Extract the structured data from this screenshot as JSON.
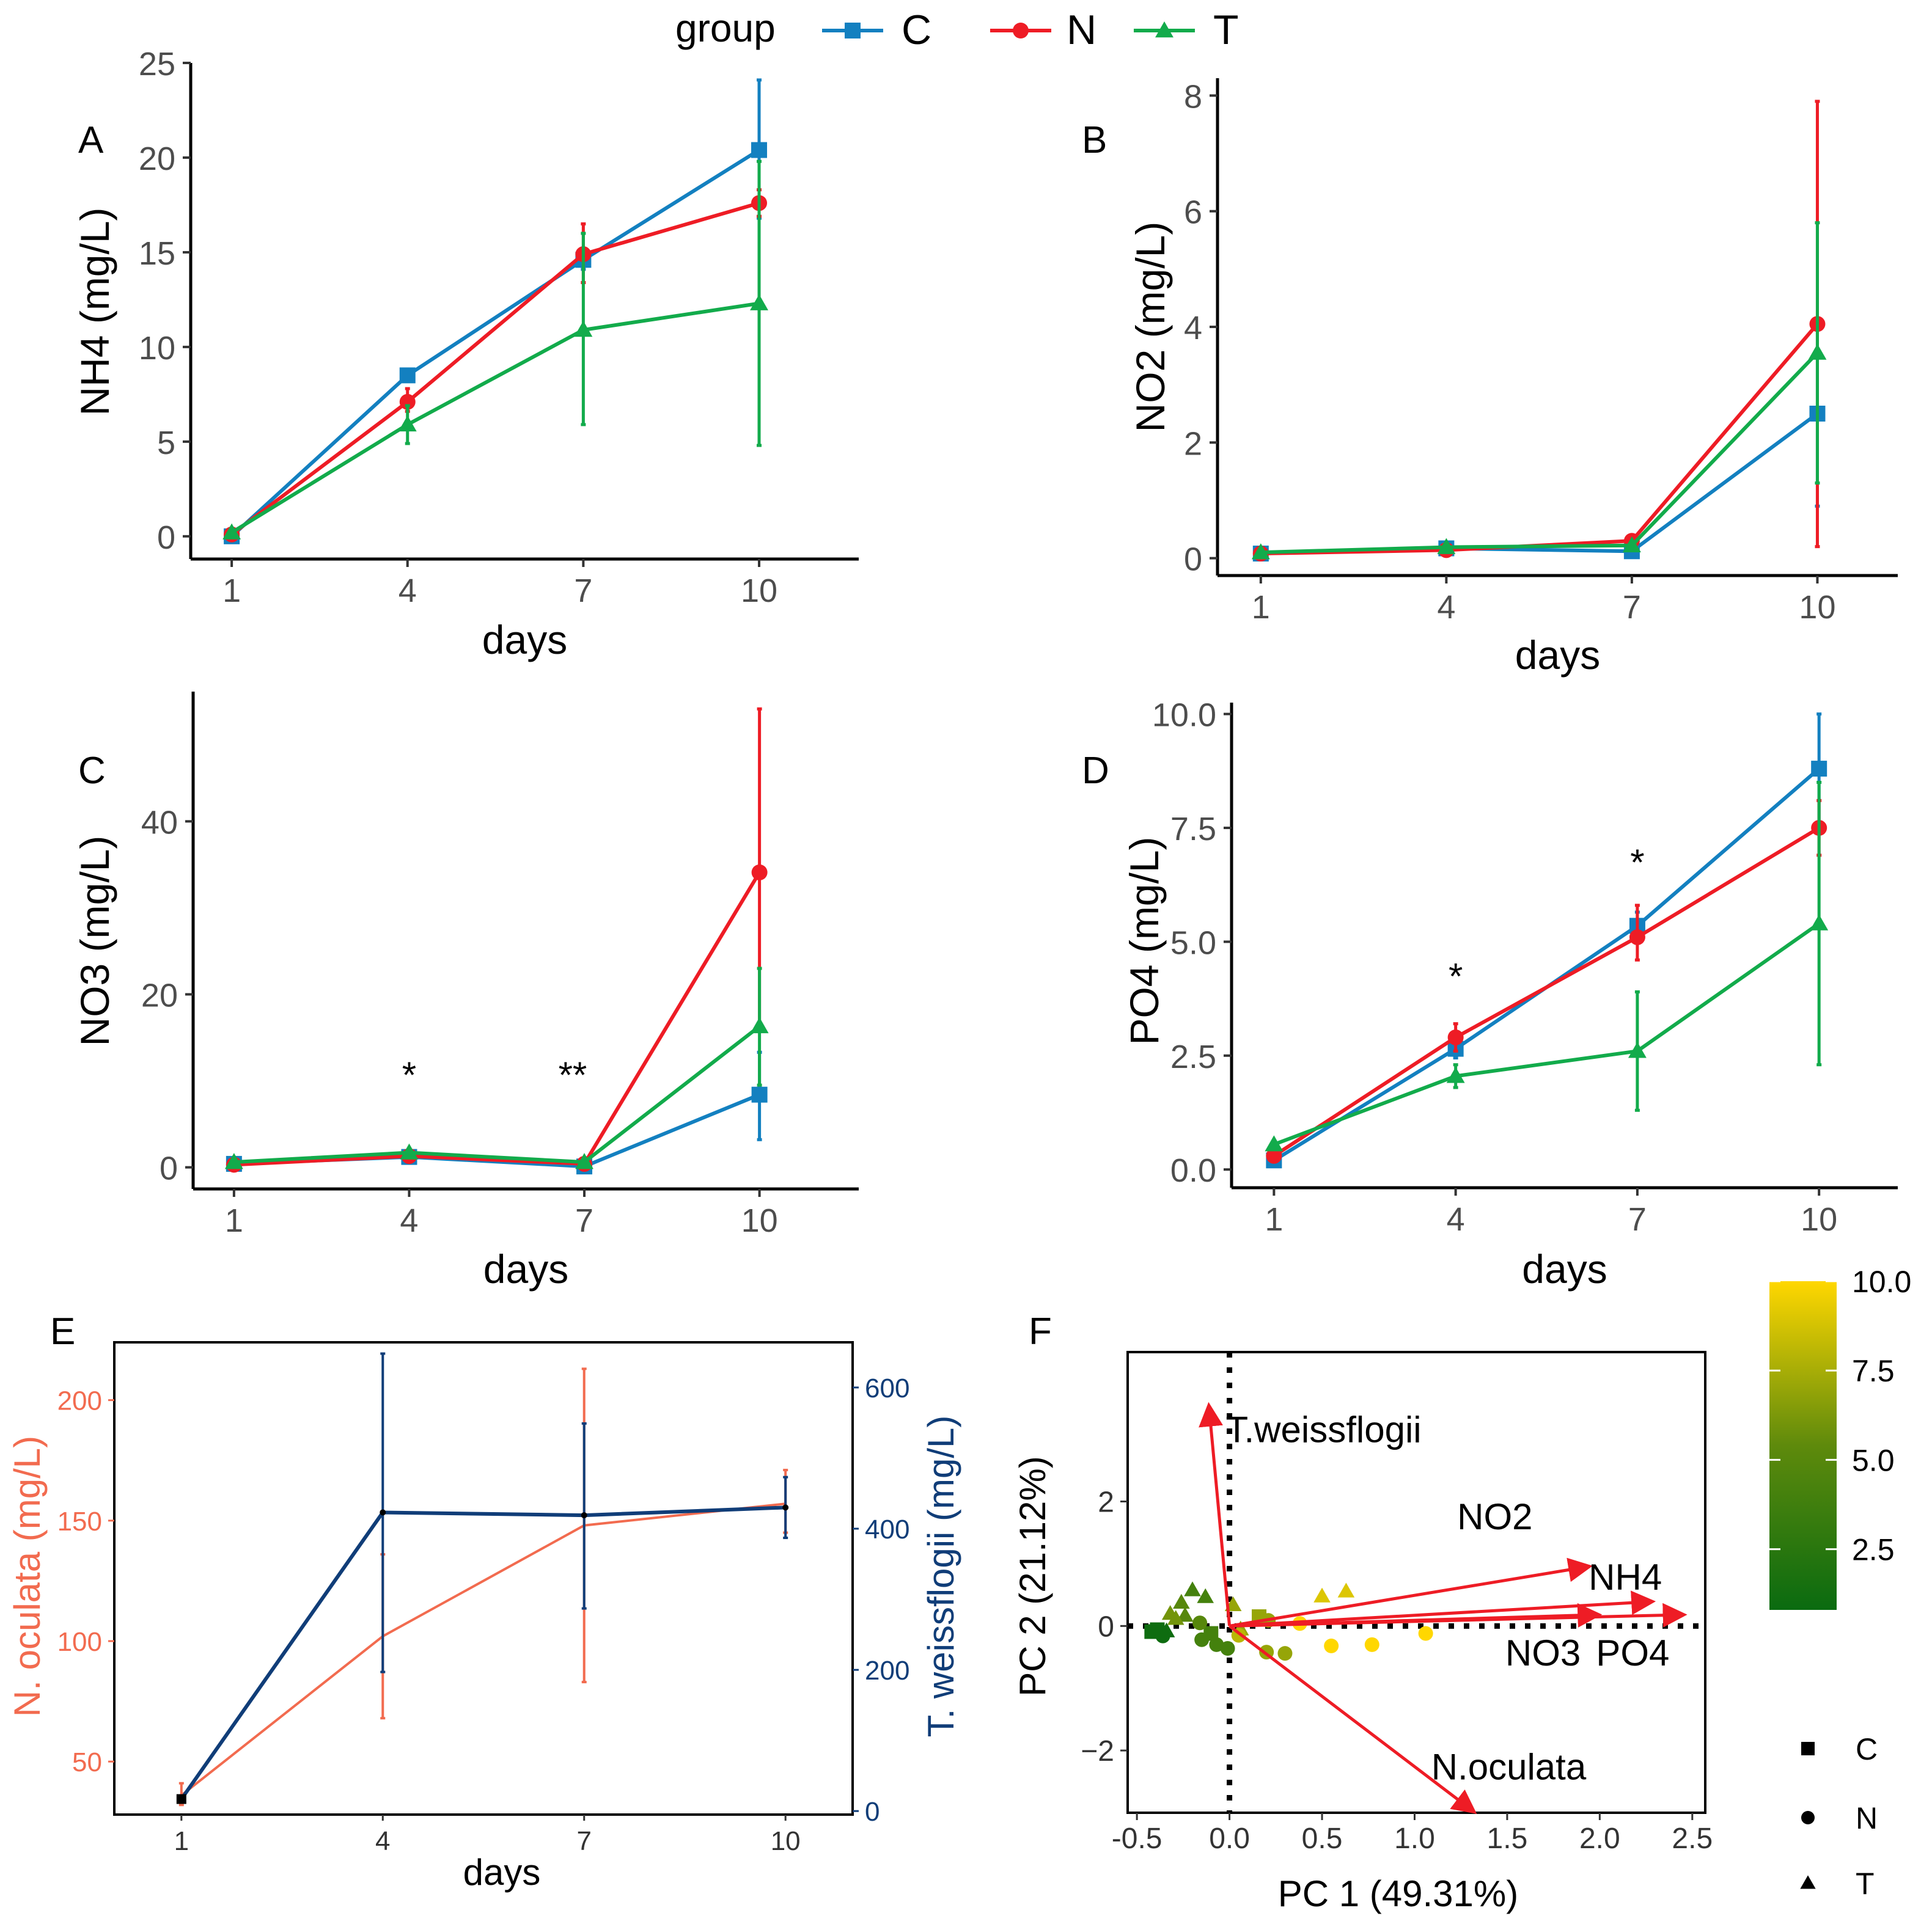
{
  "colors": {
    "C": "#1380C0",
    "N": "#EE1C25",
    "T": "#12AB4B",
    "noc": "#F26B4F",
    "tw": "#103D78",
    "axis": "#000000",
    "tick_text": "#4D4D4D",
    "arrow": "#EE1C25",
    "scale_low": "#0A6B10",
    "scale_mid": "#5E8A0C",
    "scale_high": "#FFD700"
  },
  "legend": {
    "title": "group",
    "items": [
      {
        "label": "C",
        "shape": "square",
        "color_key": "C"
      },
      {
        "label": "N",
        "shape": "circle",
        "color_key": "N"
      },
      {
        "label": "T",
        "shape": "triangle",
        "color_key": "T"
      }
    ]
  },
  "chart_data": [
    {
      "id": "A",
      "panel_label": "A",
      "type": "line",
      "xlabel": "days",
      "ylabel": "NH4 (mg/L)",
      "xlim": [
        0.3,
        11.7
      ],
      "ylim": [
        -1.2,
        25
      ],
      "xticks": [
        1,
        4,
        7,
        10
      ],
      "yticks": [
        0,
        5,
        10,
        15,
        20,
        25
      ],
      "x": [
        1,
        4,
        7,
        10
      ],
      "series": [
        {
          "name": "C",
          "values": [
            0,
            8.5,
            14.6,
            20.4
          ],
          "err_lo": [
            0,
            8.2,
            14.1,
            16.8
          ],
          "err_hi": [
            0,
            8.8,
            15.1,
            24.1
          ]
        },
        {
          "name": "N",
          "values": [
            0.1,
            7.1,
            14.9,
            17.6
          ],
          "err_lo": [
            0.1,
            6.6,
            13.4,
            16.9
          ],
          "err_hi": [
            0.1,
            7.8,
            16.5,
            18.3
          ]
        },
        {
          "name": "T",
          "values": [
            0.2,
            5.9,
            10.9,
            12.3
          ],
          "err_lo": [
            0.2,
            4.9,
            5.9,
            4.8
          ],
          "err_hi": [
            0.2,
            6.9,
            16.0,
            19.8
          ]
        }
      ],
      "annotations": []
    },
    {
      "id": "B",
      "panel_label": "B",
      "type": "line",
      "xlabel": "days",
      "ylabel": "NO2 (mg/L)",
      "xlim": [
        0.3,
        11.3
      ],
      "ylim": [
        -0.3,
        8.3
      ],
      "xticks": [
        1,
        4,
        7,
        10
      ],
      "yticks": [
        0,
        2,
        4,
        6,
        8
      ],
      "x": [
        1,
        4,
        7,
        10
      ],
      "series": [
        {
          "name": "C",
          "values": [
            0.08,
            0.17,
            0.12,
            2.5
          ],
          "err_lo": [
            0.07,
            0.15,
            0.1,
            0.9
          ],
          "err_hi": [
            0.09,
            0.19,
            0.14,
            4.1
          ]
        },
        {
          "name": "N",
          "values": [
            0.08,
            0.14,
            0.3,
            4.05
          ],
          "err_lo": [
            0.07,
            0.12,
            0.26,
            0.2
          ],
          "err_hi": [
            0.09,
            0.16,
            0.34,
            7.9
          ]
        },
        {
          "name": "T",
          "values": [
            0.1,
            0.19,
            0.22,
            3.55
          ],
          "err_lo": [
            0.09,
            0.17,
            0.2,
            1.3
          ],
          "err_hi": [
            0.11,
            0.21,
            0.24,
            5.8
          ]
        }
      ],
      "annotations": []
    },
    {
      "id": "C",
      "panel_label": "C",
      "type": "line",
      "xlabel": "days",
      "ylabel": "NO3 (mg/L)",
      "xlim": [
        0.3,
        11.7
      ],
      "ylim": [
        -2.5,
        55
      ],
      "xticks": [
        1,
        4,
        7,
        10
      ],
      "yticks": [
        0,
        20,
        40
      ],
      "x": [
        1,
        4,
        7,
        10
      ],
      "series": [
        {
          "name": "C",
          "values": [
            0.4,
            1.2,
            0.1,
            8.4
          ],
          "err_lo": [
            0.3,
            1.0,
            0.0,
            3.2
          ],
          "err_hi": [
            0.5,
            1.4,
            0.2,
            13.3
          ]
        },
        {
          "name": "N",
          "values": [
            0.3,
            1.3,
            0.4,
            34.1
          ],
          "err_lo": [
            0.2,
            1.1,
            0.3,
            16.0
          ],
          "err_hi": [
            0.4,
            1.5,
            0.5,
            53.0
          ]
        },
        {
          "name": "T",
          "values": [
            0.6,
            1.7,
            0.6,
            16.3
          ],
          "err_lo": [
            0.5,
            1.5,
            0.5,
            9.5
          ],
          "err_hi": [
            0.7,
            1.9,
            0.7,
            23.0
          ]
        }
      ],
      "annotations": [
        {
          "x": 4,
          "y": 11,
          "text": "*"
        },
        {
          "x": 6.8,
          "y": 11,
          "text": "**"
        }
      ]
    },
    {
      "id": "D",
      "panel_label": "D",
      "type": "line",
      "xlabel": "days",
      "ylabel": "PO4 (mg/L)",
      "xlim": [
        0.3,
        11.3
      ],
      "ylim": [
        -0.4,
        10.25
      ],
      "xticks": [
        1,
        4,
        7,
        10
      ],
      "yticks": [
        0.0,
        2.5,
        5.0,
        7.5,
        10.0
      ],
      "ytick_labels": [
        "0.0",
        "2.5",
        "5.0",
        "7.5",
        "10.0"
      ],
      "x": [
        1,
        4,
        7,
        10
      ],
      "series": [
        {
          "name": "C",
          "values": [
            0.2,
            2.65,
            5.35,
            8.8
          ],
          "err_lo": [
            0.15,
            2.45,
            5.05,
            7.6
          ],
          "err_hi": [
            0.25,
            2.85,
            5.65,
            10.0
          ]
        },
        {
          "name": "N",
          "values": [
            0.3,
            2.9,
            5.1,
            7.5
          ],
          "err_lo": [
            0.25,
            2.6,
            4.6,
            6.9
          ],
          "err_hi": [
            0.35,
            3.2,
            5.8,
            8.1
          ]
        },
        {
          "name": "T",
          "values": [
            0.55,
            2.05,
            2.6,
            5.4
          ],
          "err_lo": [
            0.5,
            1.8,
            1.3,
            2.3
          ],
          "err_hi": [
            0.6,
            2.3,
            3.9,
            8.5
          ]
        }
      ],
      "annotations": [
        {
          "x": 4,
          "y": 4.3,
          "text": "*"
        },
        {
          "x": 7,
          "y": 6.8,
          "text": "*"
        }
      ]
    },
    {
      "id": "E",
      "panel_label": "E",
      "type": "line",
      "xlabel": "days",
      "ylabel_left": "N. oculata (mg/L)",
      "ylabel_right": "T. weissflogii (mg/L)",
      "xlim": [
        0.0,
        11.0
      ],
      "ylim_left": [
        28,
        224
      ],
      "ylim_right": [
        -5,
        664
      ],
      "xticks": [
        1,
        4,
        7,
        10
      ],
      "yticks_left": [
        50,
        100,
        150,
        200
      ],
      "yticks_right": [
        0,
        200,
        400,
        600
      ],
      "x": [
        1,
        4,
        7,
        10
      ],
      "series": [
        {
          "name": "N. oculata",
          "axis": "left",
          "color_key": "noc",
          "values": [
            36,
            102,
            148,
            157
          ],
          "err_lo": [
            32,
            68,
            83,
            145
          ],
          "err_hi": [
            41,
            136,
            213,
            171
          ]
        },
        {
          "name": "T. weissflogii",
          "axis": "right",
          "color_key": "tw",
          "values": [
            17,
            423,
            419,
            430
          ],
          "err_lo": [
            16,
            197,
            287,
            387
          ],
          "err_hi": [
            18,
            648,
            549,
            473
          ]
        }
      ]
    },
    {
      "id": "F",
      "panel_label": "F",
      "type": "scatter",
      "xlabel": "PC 1 (49.31%)",
      "ylabel": "PC 2 (21.12%)",
      "xlim": [
        -0.55,
        2.57
      ],
      "ylim": [
        -3.0,
        4.4
      ],
      "xticks": [
        -0.5,
        0.0,
        0.5,
        1.0,
        1.5,
        2.0,
        2.5
      ],
      "xtick_labels": [
        "-0.5",
        "0.0",
        "0.5",
        "1.0",
        "1.5",
        "2.0",
        "2.5"
      ],
      "yticks": [
        -2,
        0,
        2
      ],
      "ytick_labels": [
        "−2",
        "0",
        "2"
      ],
      "color_scale": {
        "min": 0.8,
        "max": 10.0,
        "ticks": [
          2.5,
          5.0,
          7.5,
          10.0
        ],
        "tick_labels": [
          "2.5",
          "5.0",
          "7.5",
          "10.0"
        ]
      },
      "shape_legend": [
        {
          "label": "C",
          "shape": "square"
        },
        {
          "label": "N",
          "shape": "circle"
        },
        {
          "label": "T",
          "shape": "triangle"
        }
      ],
      "points": [
        {
          "x": -0.42,
          "y": -0.09,
          "shape": "square",
          "day": 1
        },
        {
          "x": -0.39,
          "y": -0.06,
          "shape": "square",
          "day": 1
        },
        {
          "x": -0.36,
          "y": -0.16,
          "shape": "circle",
          "day": 1
        },
        {
          "x": -0.37,
          "y": -0.12,
          "shape": "circle",
          "day": 1
        },
        {
          "x": -0.34,
          "y": -0.08,
          "shape": "triangle",
          "day": 1
        },
        {
          "x": -0.15,
          "y": -0.22,
          "shape": "circle",
          "day": 4
        },
        {
          "x": -0.07,
          "y": -0.3,
          "shape": "circle",
          "day": 4
        },
        {
          "x": -0.01,
          "y": -0.36,
          "shape": "circle",
          "day": 4
        },
        {
          "x": -0.1,
          "y": -0.12,
          "shape": "square",
          "day": 4
        },
        {
          "x": -0.2,
          "y": 0.58,
          "shape": "triangle",
          "day": 4
        },
        {
          "x": -0.13,
          "y": 0.47,
          "shape": "triangle",
          "day": 4
        },
        {
          "x": -0.26,
          "y": 0.38,
          "shape": "triangle",
          "day": 5
        },
        {
          "x": -0.24,
          "y": 0.17,
          "shape": "triangle",
          "day": 5
        },
        {
          "x": -0.32,
          "y": 0.2,
          "shape": "triangle",
          "day": 6
        },
        {
          "x": -0.29,
          "y": 0.12,
          "shape": "triangle",
          "day": 6
        },
        {
          "x": -0.16,
          "y": 0.05,
          "shape": "circle",
          "day": 5
        },
        {
          "x": 0.02,
          "y": 0.34,
          "shape": "triangle",
          "day": 7
        },
        {
          "x": 0.06,
          "y": -0.05,
          "shape": "triangle",
          "day": 7
        },
        {
          "x": 0.2,
          "y": -0.42,
          "shape": "circle",
          "day": 7
        },
        {
          "x": 0.3,
          "y": -0.44,
          "shape": "circle",
          "day": 7
        },
        {
          "x": 0.16,
          "y": 0.15,
          "shape": "square",
          "day": 7
        },
        {
          "x": 0.21,
          "y": 0.09,
          "shape": "circle",
          "day": 7
        },
        {
          "x": 0.5,
          "y": 0.48,
          "shape": "triangle",
          "day": 9
        },
        {
          "x": 0.63,
          "y": 0.56,
          "shape": "triangle",
          "day": 9
        },
        {
          "x": 0.55,
          "y": -0.32,
          "shape": "circle",
          "day": 10
        },
        {
          "x": 0.77,
          "y": -0.3,
          "shape": "circle",
          "day": 10
        },
        {
          "x": 1.06,
          "y": -0.12,
          "shape": "circle",
          "day": 10
        },
        {
          "x": 0.38,
          "y": 0.04,
          "shape": "circle",
          "day": 10
        },
        {
          "x": 0.05,
          "y": -0.15,
          "shape": "circle",
          "day": 8
        }
      ],
      "arrows": [
        {
          "label": "T.weissflogii",
          "x2": -0.11,
          "y2": 3.5,
          "label_x": -0.02,
          "label_y": 3.17
        },
        {
          "label": "NO2",
          "x2": 1.93,
          "y2": 0.95,
          "label_x": 1.23,
          "label_y": 1.77
        },
        {
          "label": "NH4",
          "x2": 2.27,
          "y2": 0.39,
          "label_x": 1.94,
          "label_y": 0.8
        },
        {
          "label": "NO3",
          "x2": 1.98,
          "y2": 0.18,
          "label_x": 1.49,
          "label_y": -0.42
        },
        {
          "label": "PO4",
          "x2": 2.44,
          "y2": 0.18,
          "label_x": 1.98,
          "label_y": -0.42
        },
        {
          "label": "N.oculata",
          "x2": 1.31,
          "y2": -2.96,
          "label_x": 1.09,
          "label_y": -2.25
        }
      ]
    }
  ]
}
